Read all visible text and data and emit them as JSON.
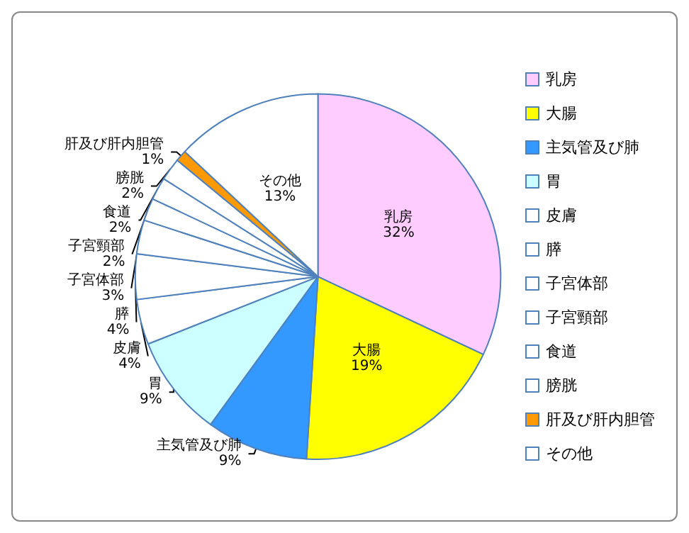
{
  "chart_data": {
    "type": "pie",
    "categories": [
      "乳房",
      "大腸",
      "主気管及び肺",
      "胃",
      "皮膚",
      "膵",
      "子宮体部",
      "子宮頸部",
      "食道",
      "膀胱",
      "肝及び肝内胆管",
      "その他"
    ],
    "values": [
      32,
      19,
      9,
      9,
      4,
      4,
      3,
      2,
      2,
      2,
      1,
      13
    ],
    "value_labels": [
      "32%",
      "19%",
      "9%",
      "9%",
      "4%",
      "4%",
      "3%",
      "2%",
      "2%",
      "2%",
      "1%",
      "13%"
    ],
    "colors": [
      "#ffccff",
      "#ffff00",
      "#3399ff",
      "#ccffff",
      "#ffffff",
      "#ffffff",
      "#ffffff",
      "#ffffff",
      "#ffffff",
      "#ffffff",
      "#ff9900",
      "#ffffff"
    ],
    "legend": "right"
  }
}
